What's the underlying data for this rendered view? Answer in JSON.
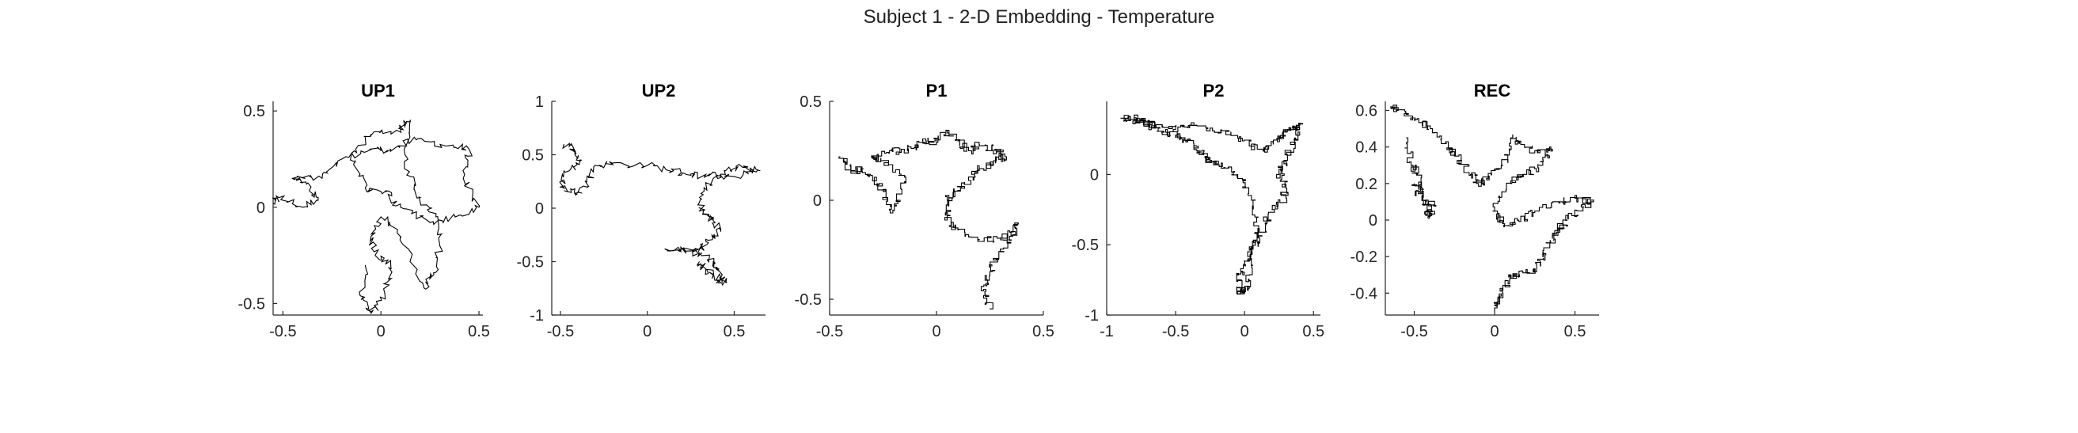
{
  "figure": {
    "title": "Subject 1 - 2-D Embedding - Temperature",
    "line_color": "#000000",
    "axis_color": "#262626"
  },
  "chart_data": [
    {
      "type": "line",
      "title": "UP1",
      "style": "jagged",
      "xlim": [
        -0.55,
        0.52
      ],
      "ylim": [
        -0.56,
        0.55
      ],
      "xticks": [
        -0.5,
        0,
        0.5
      ],
      "xticklabels": [
        "-0.5",
        "0",
        "0.5"
      ],
      "yticks": [
        -0.5,
        0,
        0.5
      ],
      "yticklabels": [
        "-0.5",
        "0",
        "0.5"
      ],
      "x": [
        -0.55,
        -0.52,
        -0.4,
        -0.32,
        -0.38,
        -0.45,
        -0.3,
        -0.2,
        -0.05,
        0.05,
        0.18,
        0.35,
        0.45,
        0.42,
        0.5,
        0.38,
        0.25,
        0.1,
        0.02,
        -0.08,
        -0.15,
        -0.05,
        0.08,
        0.15,
        0.12,
        0.2,
        0.28,
        0.3,
        0.27,
        0.22,
        0.1,
        0.0,
        -0.05,
        -0.03,
        0.05,
        0.02,
        -0.05,
        -0.1,
        -0.08
      ],
      "y": [
        0.02,
        0.05,
        0.0,
        0.05,
        0.12,
        0.15,
        0.15,
        0.25,
        0.3,
        0.3,
        0.35,
        0.32,
        0.3,
        0.15,
        0.0,
        -0.05,
        -0.08,
        0.0,
        0.08,
        0.1,
        0.28,
        0.38,
        0.4,
        0.45,
        0.2,
        0.05,
        -0.05,
        -0.2,
        -0.35,
        -0.42,
        -0.15,
        -0.05,
        -0.15,
        -0.25,
        -0.3,
        -0.45,
        -0.55,
        -0.48,
        -0.3
      ]
    },
    {
      "type": "line",
      "title": "UP2",
      "style": "jagged",
      "xlim": [
        -0.55,
        0.68
      ],
      "ylim": [
        -1.0,
        1.0
      ],
      "xticks": [
        -0.5,
        0,
        0.5
      ],
      "xticklabels": [
        "-0.5",
        "0",
        "0.5"
      ],
      "yticks": [
        -1,
        -0.5,
        0,
        0.5,
        1
      ],
      "yticklabels": [
        "-1",
        "-0.5",
        "0",
        "0.5",
        "1"
      ],
      "x": [
        -0.48,
        -0.42,
        -0.38,
        -0.45,
        -0.5,
        -0.42,
        -0.35,
        -0.3,
        -0.2,
        0.0,
        0.15,
        0.25,
        0.35,
        0.45,
        0.55,
        0.65,
        0.5,
        0.38,
        0.3,
        0.32,
        0.38,
        0.42,
        0.35,
        0.3,
        0.25,
        0.1,
        0.3,
        0.38,
        0.42,
        0.4,
        0.45,
        0.38,
        0.32,
        0.3
      ],
      "y": [
        0.6,
        0.55,
        0.45,
        0.35,
        0.2,
        0.15,
        0.2,
        0.4,
        0.42,
        0.4,
        0.35,
        0.32,
        0.3,
        0.35,
        0.38,
        0.35,
        0.3,
        0.28,
        0.1,
        -0.05,
        -0.1,
        -0.2,
        -0.3,
        -0.38,
        -0.4,
        -0.38,
        -0.42,
        -0.5,
        -0.6,
        -0.7,
        -0.68,
        -0.62,
        -0.55,
        -0.5
      ]
    },
    {
      "type": "line",
      "title": "P1",
      "style": "step",
      "xlim": [
        -0.5,
        0.5
      ],
      "ylim": [
        -0.58,
        0.5
      ],
      "xticks": [
        -0.5,
        0,
        0.5
      ],
      "xticklabels": [
        "-0.5",
        "0",
        "0.5"
      ],
      "yticks": [
        -0.5,
        0,
        0.5
      ],
      "yticklabels": [
        "-0.5",
        "0",
        "0.5"
      ],
      "x": [
        -0.45,
        -0.4,
        -0.35,
        -0.3,
        -0.25,
        -0.22,
        -0.18,
        -0.15,
        -0.25,
        -0.3,
        -0.22,
        -0.15,
        -0.1,
        -0.05,
        0.0,
        0.05,
        0.1,
        0.15,
        0.2,
        0.28,
        0.32,
        0.28,
        0.2,
        0.15,
        0.1,
        0.05,
        0.05,
        0.1,
        0.2,
        0.3,
        0.38,
        0.35,
        0.28,
        0.25,
        0.22,
        0.25
      ],
      "y": [
        0.22,
        0.15,
        0.15,
        0.12,
        0.05,
        -0.05,
        0.0,
        0.12,
        0.2,
        0.22,
        0.25,
        0.25,
        0.28,
        0.3,
        0.3,
        0.35,
        0.3,
        0.25,
        0.28,
        0.25,
        0.22,
        0.2,
        0.15,
        0.1,
        0.05,
        0.0,
        -0.1,
        -0.15,
        -0.2,
        -0.2,
        -0.12,
        -0.2,
        -0.3,
        -0.38,
        -0.45,
        -0.55
      ]
    },
    {
      "type": "line",
      "title": "P2",
      "style": "step",
      "xlim": [
        -1.0,
        0.55
      ],
      "ylim": [
        -1.0,
        0.52
      ],
      "xticks": [
        -1,
        -0.5,
        0,
        0.5
      ],
      "xticklabels": [
        "-1",
        "-0.5",
        "0",
        "0.5"
      ],
      "yticks": [
        -1,
        -0.5,
        0
      ],
      "yticklabels": [
        "-1",
        "-0.5",
        "0"
      ],
      "x": [
        -0.9,
        -0.8,
        -0.65,
        -0.5,
        -0.4,
        -0.25,
        -0.1,
        0.05,
        0.15,
        0.25,
        0.3,
        0.35,
        0.4,
        0.38,
        0.3,
        0.25,
        0.3,
        0.28,
        0.2,
        0.15,
        0.1,
        0.05,
        0.0,
        -0.05,
        -0.03,
        0.02,
        0.05,
        0.1,
        0.05,
        -0.05,
        -0.15,
        -0.25,
        -0.3,
        -0.35,
        -0.45,
        -0.5,
        -0.6,
        -0.7,
        -0.75,
        -0.8
      ],
      "y": [
        0.4,
        0.38,
        0.35,
        0.32,
        0.35,
        0.33,
        0.3,
        0.2,
        0.18,
        0.25,
        0.3,
        0.32,
        0.35,
        0.25,
        0.1,
        0.0,
        -0.1,
        -0.2,
        -0.25,
        -0.35,
        -0.45,
        -0.55,
        -0.65,
        -0.75,
        -0.85,
        -0.8,
        -0.6,
        -0.4,
        -0.15,
        0.0,
        0.05,
        0.1,
        0.15,
        0.2,
        0.25,
        0.28,
        0.3,
        0.35,
        0.38,
        0.4
      ]
    },
    {
      "type": "line",
      "title": "REC",
      "style": "step",
      "xlim": [
        -0.68,
        0.65
      ],
      "ylim": [
        -0.52,
        0.65
      ],
      "xticks": [
        -0.5,
        0,
        0.5
      ],
      "xticklabels": [
        "-0.5",
        "0",
        "0.5"
      ],
      "yticks": [
        -0.4,
        -0.2,
        0,
        0.2,
        0.4,
        0.6
      ],
      "yticklabels": [
        "-0.4",
        "-0.2",
        "0",
        "0.2",
        "0.4",
        "0.6"
      ],
      "x": [
        -0.65,
        -0.6,
        -0.5,
        -0.4,
        -0.3,
        -0.25,
        -0.15,
        -0.1,
        -0.05,
        0.05,
        0.1,
        0.15,
        0.25,
        0.35,
        0.3,
        0.2,
        0.1,
        0.0,
        0.05,
        0.15,
        0.25,
        0.4,
        0.5,
        0.6,
        0.55,
        0.45,
        0.4,
        0.35,
        0.3,
        0.25,
        0.15,
        0.1,
        0.05,
        0.02,
        0.0
      ],
      "y": [
        0.62,
        0.6,
        0.55,
        0.5,
        0.42,
        0.35,
        0.25,
        0.2,
        0.22,
        0.3,
        0.45,
        0.42,
        0.38,
        0.4,
        0.3,
        0.25,
        0.2,
        0.05,
        -0.02,
        0.0,
        0.05,
        0.1,
        0.12,
        0.1,
        0.05,
        0.0,
        -0.05,
        -0.12,
        -0.2,
        -0.28,
        -0.3,
        -0.32,
        -0.4,
        -0.45,
        -0.5
      ],
      "x2": [
        -0.55,
        -0.52,
        -0.48,
        -0.45,
        -0.42,
        -0.4,
        -0.38,
        -0.45,
        -0.5
      ],
      "y2": [
        0.45,
        0.3,
        0.25,
        0.15,
        0.05,
        0.02,
        0.08,
        0.12,
        0.2
      ]
    }
  ]
}
